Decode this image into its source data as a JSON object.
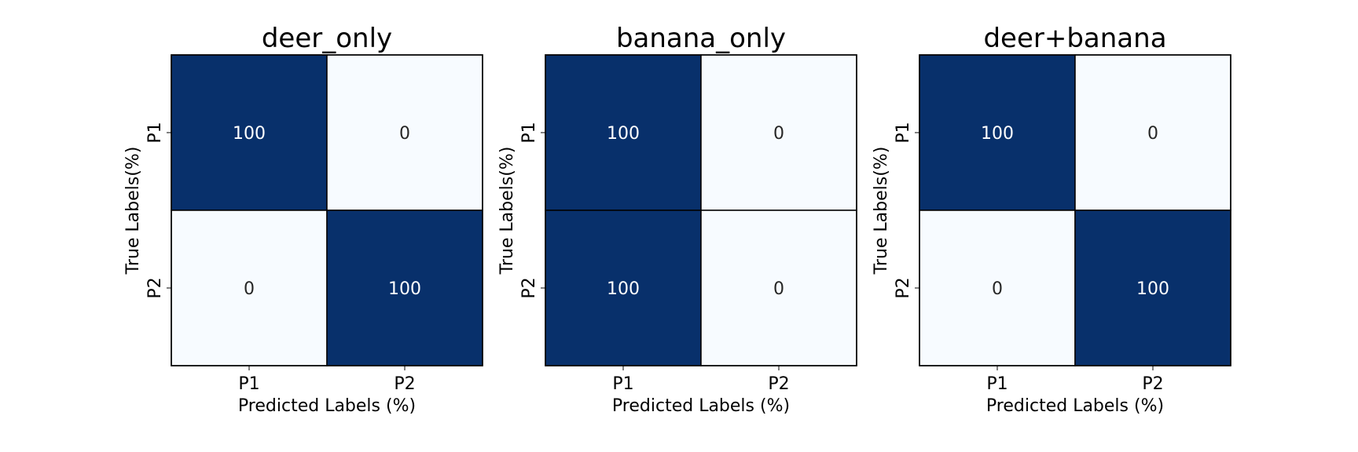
{
  "chart_data": [
    {
      "type": "heatmap",
      "title": "deer_only",
      "xlabel": "Predicted Labels (%)",
      "ylabel": "True Labels(%)",
      "x_categories": [
        "P1",
        "P2"
      ],
      "y_categories": [
        "P1",
        "P2"
      ],
      "values": [
        [
          100,
          0
        ],
        [
          0,
          100
        ]
      ],
      "colormap": "Blues",
      "value_range": [
        0,
        100
      ]
    },
    {
      "type": "heatmap",
      "title": "banana_only",
      "xlabel": "Predicted Labels (%)",
      "ylabel": "True Labels(%)",
      "x_categories": [
        "P1",
        "P2"
      ],
      "y_categories": [
        "P1",
        "P2"
      ],
      "values": [
        [
          100,
          0
        ],
        [
          100,
          0
        ]
      ],
      "colormap": "Blues",
      "value_range": [
        0,
        100
      ]
    },
    {
      "type": "heatmap",
      "title": "deer+banana",
      "xlabel": "Predicted Labels (%)",
      "ylabel": "True Labels(%)",
      "x_categories": [
        "P1",
        "P2"
      ],
      "y_categories": [
        "P1",
        "P2"
      ],
      "values": [
        [
          100,
          0
        ],
        [
          0,
          100
        ]
      ],
      "colormap": "Blues",
      "value_range": [
        0,
        100
      ]
    }
  ],
  "colors": {
    "high": "#08306b",
    "low": "#f7fbff",
    "text_on_high": "#ffffff",
    "text_on_low": "#262626"
  }
}
